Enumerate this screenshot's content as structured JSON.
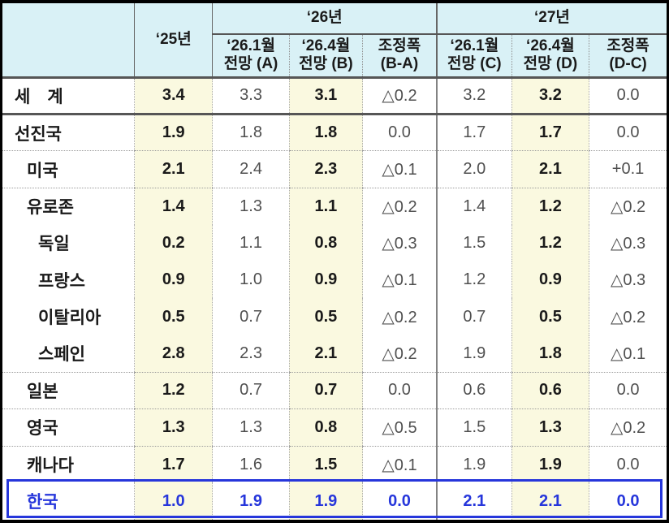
{
  "colors": {
    "header_bg_cyan": "#d9f1f6",
    "highlight_bg_yellow": "#faf9e0",
    "korea_accent_blue": "#2636db",
    "outer_border_black": "#000000",
    "thick_separator_gray": "#565656"
  },
  "table": {
    "header": {
      "corner": "",
      "y25": "‘25년",
      "y26": "‘26년",
      "y27": "‘27년",
      "sub": [
        {
          "line1": "‘26.1월",
          "line2": "전망 (A)"
        },
        {
          "line1": "‘26.4월",
          "line2": "전망 (B)"
        },
        {
          "line1": "조정폭",
          "line2": "(B-A)"
        },
        {
          "line1": "‘26.1월",
          "line2": "전망 (C)"
        },
        {
          "line1": "‘26.4월",
          "line2": "전망 (D)"
        },
        {
          "line1": "조정폭",
          "line2": "(D-C)"
        }
      ]
    },
    "rows": [
      {
        "key": "world",
        "label": "세　계",
        "indent": 1,
        "sep": "thick",
        "values": [
          "3.4",
          "3.3",
          "3.1",
          "△0.2",
          "3.2",
          "3.2",
          "0.0"
        ]
      },
      {
        "key": "advanced",
        "label": "선진국",
        "indent": 1,
        "sep": "dotted",
        "values": [
          "1.9",
          "1.8",
          "1.8",
          "0.0",
          "1.7",
          "1.7",
          "0.0"
        ]
      },
      {
        "key": "usa",
        "label": "미국",
        "indent": 2,
        "sep": "dotted",
        "values": [
          "2.1",
          "2.4",
          "2.3",
          "△0.1",
          "2.0",
          "2.1",
          "+0.1"
        ]
      },
      {
        "key": "eurozone",
        "label": "유로존",
        "indent": 2,
        "sep": "none",
        "values": [
          "1.4",
          "1.3",
          "1.1",
          "△0.2",
          "1.4",
          "1.2",
          "△0.2"
        ]
      },
      {
        "key": "germany",
        "label": "독일",
        "indent": 3,
        "sep": "none",
        "values": [
          "0.2",
          "1.1",
          "0.8",
          "△0.3",
          "1.5",
          "1.2",
          "△0.3"
        ]
      },
      {
        "key": "france",
        "label": "프랑스",
        "indent": 3,
        "sep": "none",
        "values": [
          "0.9",
          "1.0",
          "0.9",
          "△0.1",
          "1.2",
          "0.9",
          "△0.3"
        ]
      },
      {
        "key": "italy",
        "label": "이탈리아",
        "indent": 3,
        "sep": "none",
        "values": [
          "0.5",
          "0.7",
          "0.5",
          "△0.2",
          "0.7",
          "0.5",
          "△0.2"
        ]
      },
      {
        "key": "spain",
        "label": "스페인",
        "indent": 3,
        "sep": "dotted",
        "values": [
          "2.8",
          "2.3",
          "2.1",
          "△0.2",
          "1.9",
          "1.8",
          "△0.1"
        ]
      },
      {
        "key": "japan",
        "label": "일본",
        "indent": 2,
        "sep": "dotted",
        "values": [
          "1.2",
          "0.7",
          "0.7",
          "0.0",
          "0.6",
          "0.6",
          "0.0"
        ]
      },
      {
        "key": "uk",
        "label": "영국",
        "indent": 2,
        "sep": "dotted",
        "values": [
          "1.3",
          "1.3",
          "0.8",
          "△0.5",
          "1.5",
          "1.3",
          "△0.2"
        ]
      },
      {
        "key": "canada",
        "label": "캐나다",
        "indent": 2,
        "sep": "none",
        "values": [
          "1.7",
          "1.6",
          "1.5",
          "△0.1",
          "1.9",
          "1.9",
          "0.0"
        ]
      },
      {
        "key": "korea",
        "label": "한국",
        "indent": 2,
        "sep": "none",
        "values": [
          "1.0",
          "1.9",
          "1.9",
          "0.0",
          "2.1",
          "2.1",
          "0.0"
        ]
      }
    ]
  }
}
